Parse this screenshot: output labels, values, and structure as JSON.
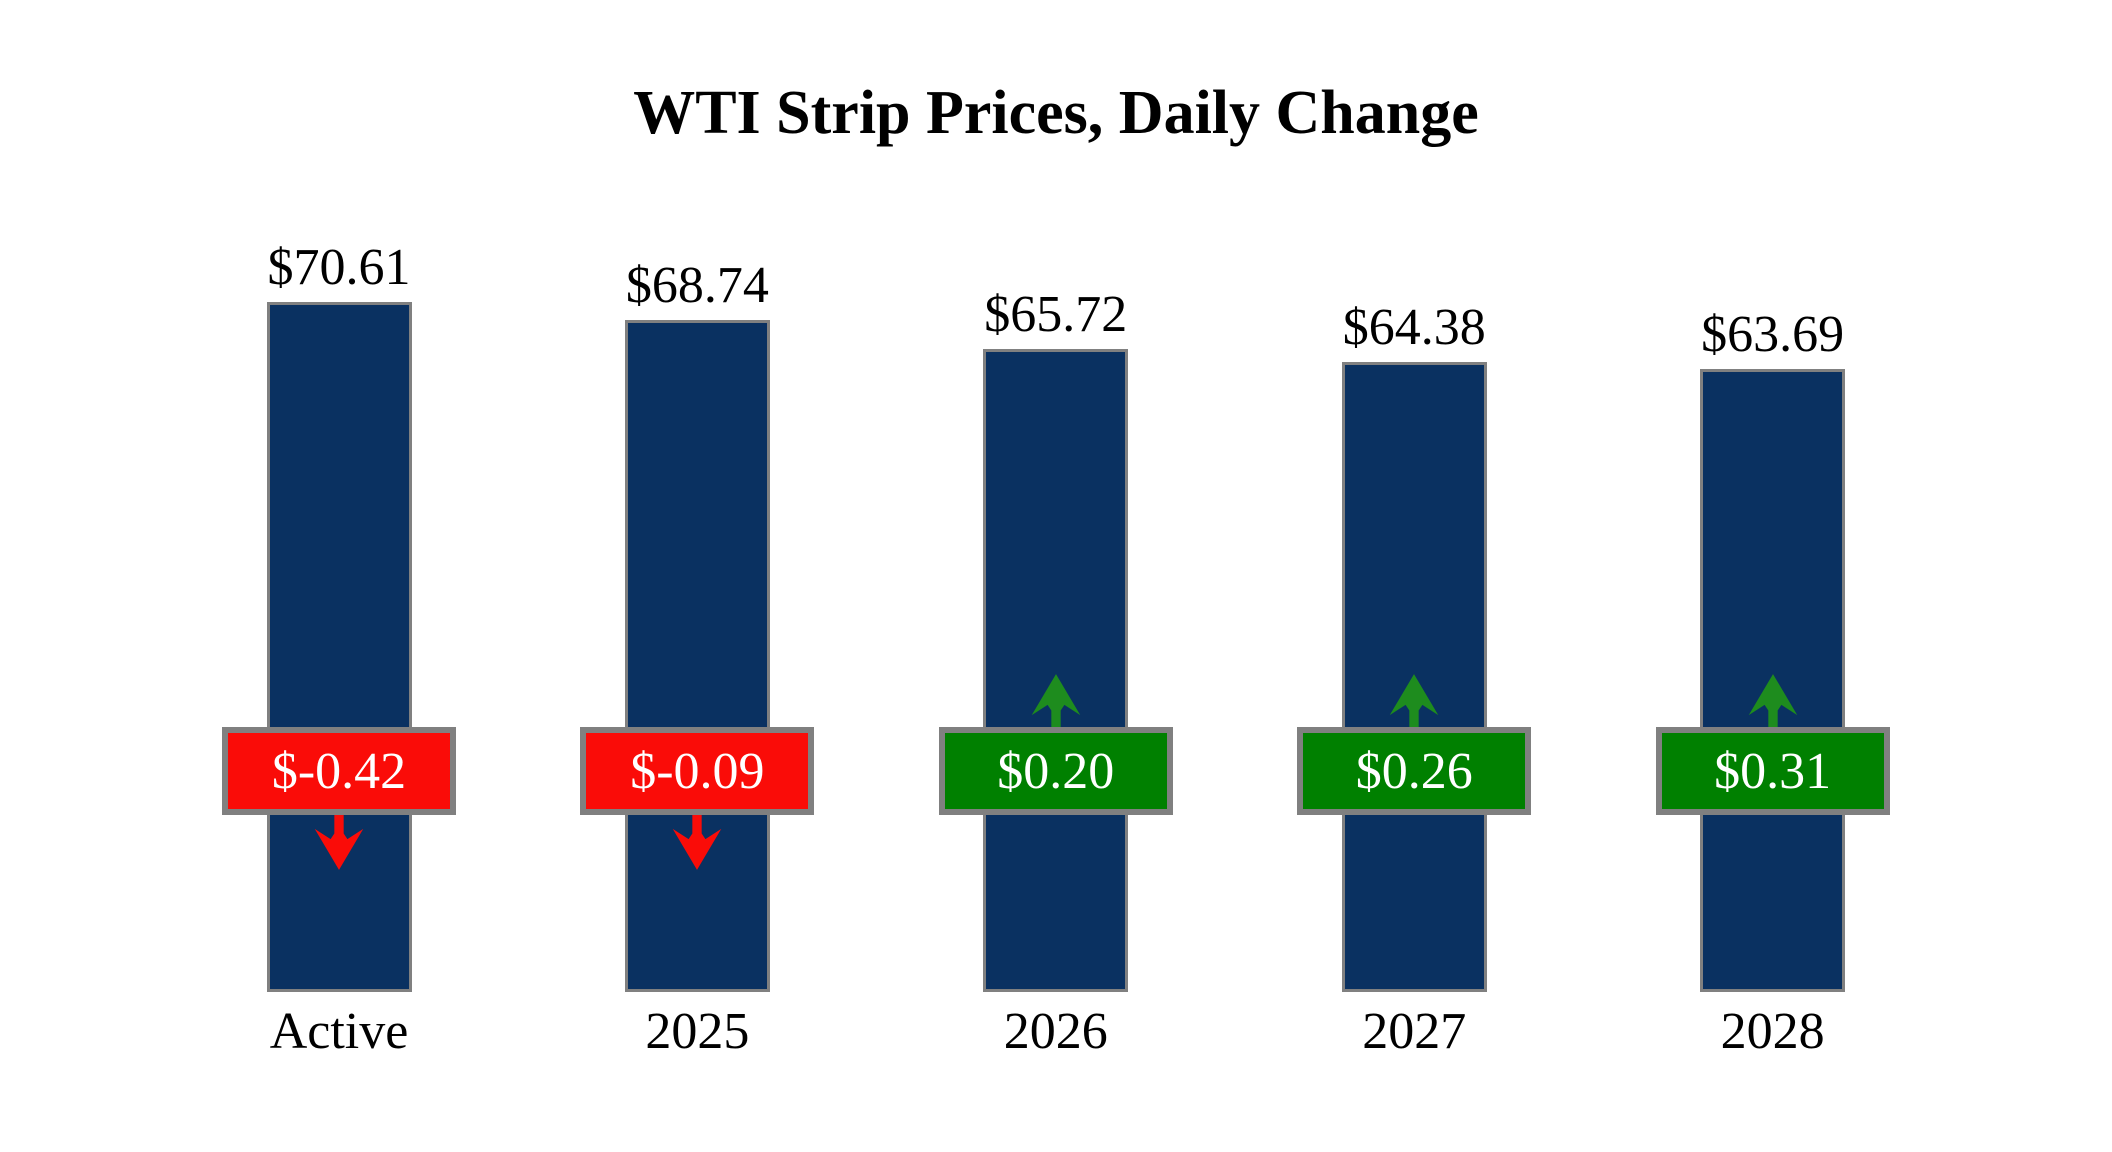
{
  "title": "WTI Strip Prices, Daily Change",
  "chart_data": {
    "type": "bar",
    "title": "WTI Strip Prices, Daily Change",
    "categories": [
      "Active",
      "2025",
      "2026",
      "2027",
      "2028"
    ],
    "series": [
      {
        "name": "Strip Price",
        "values": [
          70.61,
          68.74,
          65.72,
          64.38,
          63.69
        ]
      },
      {
        "name": "Daily Change",
        "values": [
          -0.42,
          -0.09,
          0.2,
          0.26,
          0.31
        ]
      }
    ],
    "legend": false,
    "grid": false,
    "axes_hidden": true,
    "value_label_format": "$0.00"
  },
  "bars": [
    {
      "category": "Active",
      "price_label": "$70.61",
      "price": 70.61,
      "change_label": "$-0.42",
      "change": -0.42,
      "direction": "down"
    },
    {
      "category": "2025",
      "price_label": "$68.74",
      "price": 68.74,
      "change_label": "$-0.09",
      "change": -0.09,
      "direction": "down"
    },
    {
      "category": "2026",
      "price_label": "$65.72",
      "price": 65.72,
      "change_label": "$0.20",
      "change": 0.2,
      "direction": "up"
    },
    {
      "category": "2027",
      "price_label": "$64.38",
      "price": 64.38,
      "change_label": "$0.26",
      "change": 0.26,
      "direction": "up"
    },
    {
      "category": "2028",
      "price_label": "$63.69",
      "price": 63.69,
      "change_label": "$0.31",
      "change": 0.31,
      "direction": "up"
    }
  ],
  "colors": {
    "bar_fill": "#0A3161",
    "bar_border": "#808080",
    "badge_border": "#808080",
    "negative_fill": "#FA0C08",
    "positive_fill": "#008000",
    "negative_arrow": "#FA0C08",
    "positive_arrow": "#1E8C1E",
    "text": "#000000",
    "badge_text": "#FFFFFF",
    "background": "#FFFFFF"
  }
}
